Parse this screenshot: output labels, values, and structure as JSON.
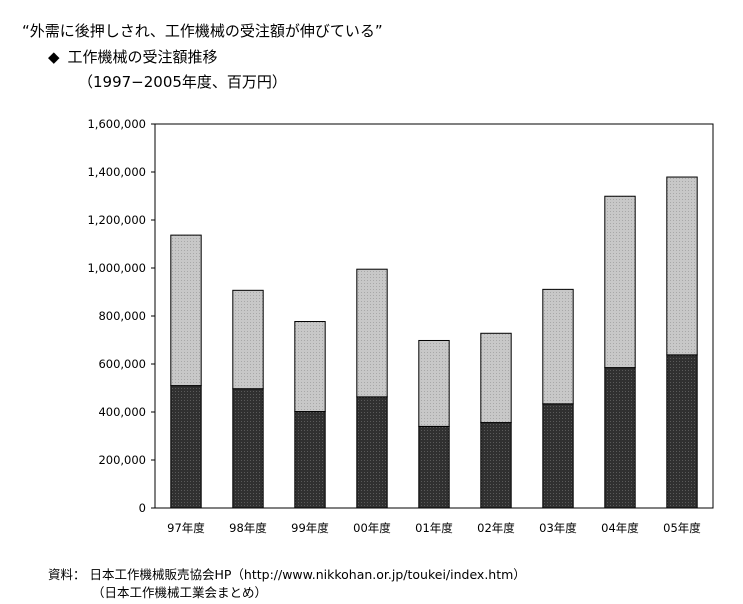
{
  "header": {
    "headline": "“外需に後押しされ、工作機械の受注額が伸びている”",
    "diamond": "◆",
    "title": "工作機械の受注額推移",
    "period": "（1997−2005年度、百万円）"
  },
  "chart_data": {
    "type": "bar",
    "stacked": true,
    "categories": [
      "97年度",
      "98年度",
      "99年度",
      "00年度",
      "01年度",
      "02年度",
      "03年度",
      "04年度",
      "05年度"
    ],
    "series": [
      {
        "values": [
          510000,
          497000,
          402000,
          463000,
          340000,
          356000,
          434000,
          585000,
          638000
        ],
        "color": "#303030"
      },
      {
        "values": [
          627000,
          410000,
          375000,
          532000,
          358000,
          372000,
          477000,
          714000,
          741000
        ],
        "color": "#c8c8c8"
      }
    ],
    "ylim": [
      0,
      1600000
    ],
    "yticks": [
      0,
      200000,
      400000,
      600000,
      800000,
      1000000,
      1200000,
      1400000,
      1600000
    ],
    "ytick_labels": [
      "0",
      "200,000",
      "400,000",
      "600,000",
      "800,000",
      "1,000,000",
      "1,200,000",
      "1,400,000",
      "1,600,000"
    ],
    "grid": false,
    "legend": "none"
  },
  "source": {
    "line1": "資料：  日本工作機械販売協会HP（http://www.nikkohan.or.jp/toukei/index.htm）",
    "line2": "（日本工作機械工業会まとめ）"
  }
}
